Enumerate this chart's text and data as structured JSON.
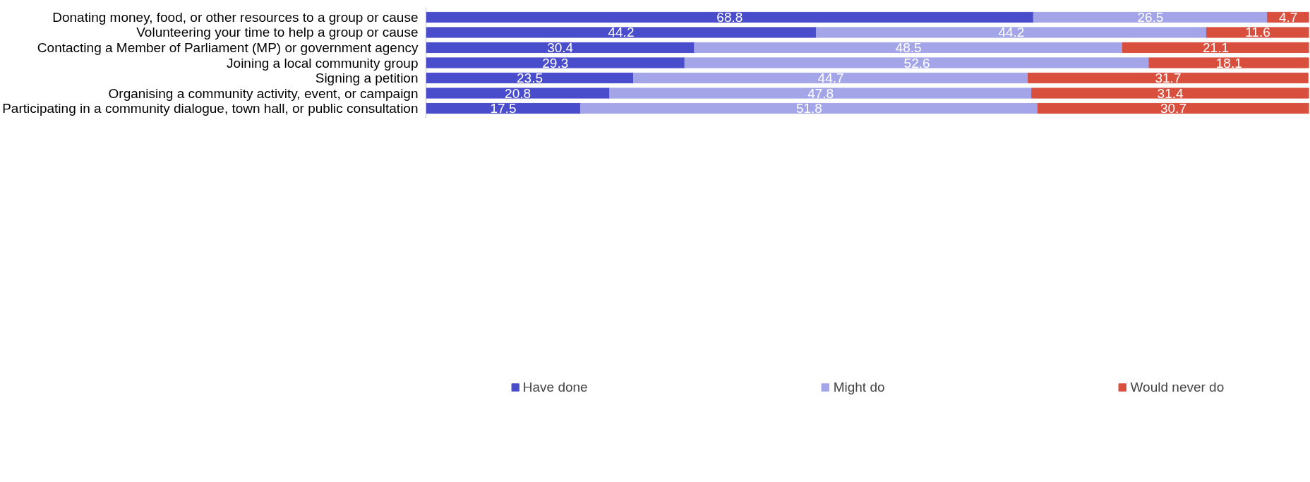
{
  "chart_data": {
    "type": "bar",
    "orientation": "horizontal",
    "stacked": true,
    "data_labels": true,
    "legend": "bottom",
    "grid": false,
    "categories": [
      "Donating money, food, or other resources to a group or cause",
      "Volunteering your time to help a group or cause",
      "Contacting a Member of Parliament (MP) or government agency",
      "Joining a local community group",
      "Signing a petition",
      "Organising a community activity, event, or campaign",
      "Participating in a community dialogue, town hall, or public consultation"
    ],
    "series": [
      {
        "name": "Have done",
        "color": "#4a4dcb",
        "values": [
          68.8,
          44.2,
          30.4,
          29.3,
          23.5,
          20.8,
          17.5
        ]
      },
      {
        "name": "Might do",
        "color": "#a3a5e8",
        "values": [
          26.5,
          44.2,
          48.5,
          52.6,
          44.7,
          47.8,
          51.8
        ]
      },
      {
        "name": "Would never do",
        "color": "#d94f3e",
        "values": [
          4.7,
          11.6,
          21.1,
          18.1,
          31.7,
          31.4,
          30.7
        ]
      }
    ]
  }
}
